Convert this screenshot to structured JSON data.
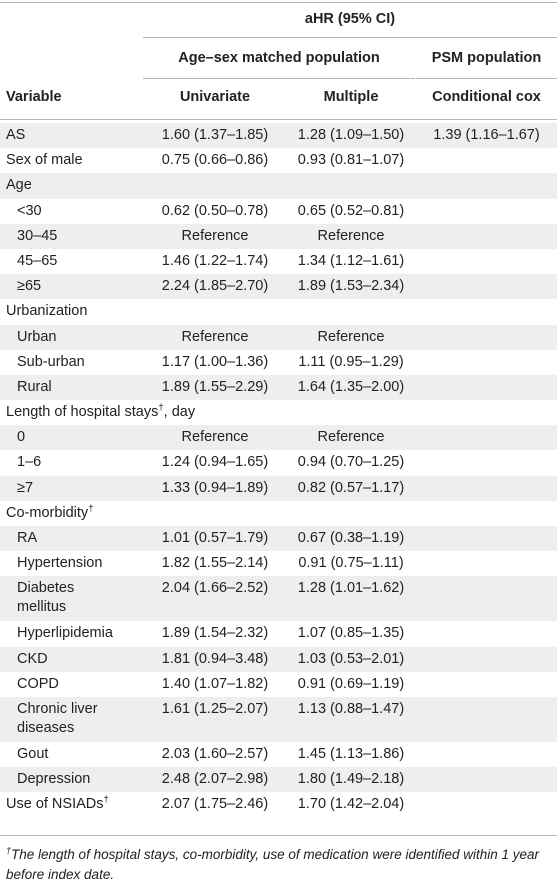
{
  "header": {
    "group_title": "aHR (95% CI)",
    "sub_group_1": "Age–sex matched population",
    "sub_group_2": "PSM population",
    "col_variable": "Variable",
    "col_univariate": "Univariate",
    "col_multiple": "Multiple",
    "col_conditional": "Conditional cox"
  },
  "rows": [
    {
      "label": "AS",
      "univariate": "1.60 (1.37–1.85)",
      "multiple": "1.28 (1.09–1.50)",
      "conditional": "1.39 (1.16–1.67)"
    },
    {
      "label": "Sex of male",
      "univariate": "0.75 (0.66–0.86)",
      "multiple": "0.93 (0.81–1.07)",
      "conditional": ""
    },
    {
      "label": "Age",
      "univariate": "",
      "multiple": "",
      "conditional": ""
    },
    {
      "label": "<30",
      "univariate": "0.62 (0.50–0.78)",
      "multiple": "0.65 (0.52–0.81)",
      "conditional": ""
    },
    {
      "label": "30–45",
      "univariate": "Reference",
      "multiple": "Reference",
      "conditional": ""
    },
    {
      "label": "45–65",
      "univariate": "1.46 (1.22–1.74)",
      "multiple": "1.34 (1.12–1.61)",
      "conditional": ""
    },
    {
      "label": "≥65",
      "univariate": "2.24 (1.85–2.70)",
      "multiple": "1.89 (1.53–2.34)",
      "conditional": ""
    },
    {
      "label": "Urbanization",
      "univariate": "",
      "multiple": "",
      "conditional": ""
    },
    {
      "label": "Urban",
      "univariate": "Reference",
      "multiple": "Reference",
      "conditional": ""
    },
    {
      "label": "Sub-urban",
      "univariate": "1.17 (1.00–1.36)",
      "multiple": "1.11 (0.95–1.29)",
      "conditional": ""
    },
    {
      "label": "Rural",
      "univariate": "1.89 (1.55–2.29)",
      "multiple": "1.64 (1.35–2.00)",
      "conditional": ""
    },
    {
      "label": "Length of hospital stays",
      "label_sup": "†",
      "label_after": ", day",
      "univariate": "",
      "multiple": "",
      "conditional": ""
    },
    {
      "label": "0",
      "univariate": "Reference",
      "multiple": "Reference",
      "conditional": ""
    },
    {
      "label": "1–6",
      "univariate": "1.24 (0.94–1.65)",
      "multiple": "0.94 (0.70–1.25)",
      "conditional": ""
    },
    {
      "label": "≥7",
      "univariate": "1.33 (0.94–1.89)",
      "multiple": "0.82 (0.57–1.17)",
      "conditional": ""
    },
    {
      "label": "Co-morbidity",
      "label_sup": "†",
      "univariate": "",
      "multiple": "",
      "conditional": ""
    },
    {
      "label": "RA",
      "univariate": "1.01 (0.57–1.79)",
      "multiple": "0.67 (0.38–1.19)",
      "conditional": ""
    },
    {
      "label": "Hypertension",
      "univariate": "1.82 (1.55–2.14)",
      "multiple": "0.91 (0.75–1.11)",
      "conditional": ""
    },
    {
      "label": "Diabetes",
      "label_line2": "mellitus",
      "univariate": "2.04 (1.66–2.52)",
      "multiple": "1.28 (1.01–1.62)",
      "conditional": ""
    },
    {
      "label": "Hyperlipidemia",
      "univariate": "1.89 (1.54–2.32)",
      "multiple": "1.07 (0.85–1.35)",
      "conditional": ""
    },
    {
      "label": "CKD",
      "univariate": "1.81 (0.94–3.48)",
      "multiple": "1.03 (0.53–2.01)",
      "conditional": ""
    },
    {
      "label": "COPD",
      "univariate": "1.40 (1.07–1.82)",
      "multiple": "0.91 (0.69–1.19)",
      "conditional": ""
    },
    {
      "label": "Chronic liver",
      "label_line2": "diseases",
      "univariate": "1.61 (1.25–2.07)",
      "multiple": "1.13 (0.88–1.47)",
      "conditional": ""
    },
    {
      "label": "Gout",
      "univariate": "2.03 (1.60–2.57)",
      "multiple": "1.45 (1.13–1.86)",
      "conditional": ""
    },
    {
      "label": "Depression",
      "univariate": "2.48 (2.07–2.98)",
      "multiple": "1.80 (1.49–2.18)",
      "conditional": ""
    },
    {
      "label": "Use of NSIADs",
      "label_sup": "†",
      "univariate": "2.07 (1.75–2.46)",
      "multiple": "1.70 (1.42–2.04)",
      "conditional": ""
    }
  ],
  "footnote": {
    "marker": "†",
    "text": "The length of hospital stays, co-morbidity, use of medication were identified within 1 year before index date."
  }
}
